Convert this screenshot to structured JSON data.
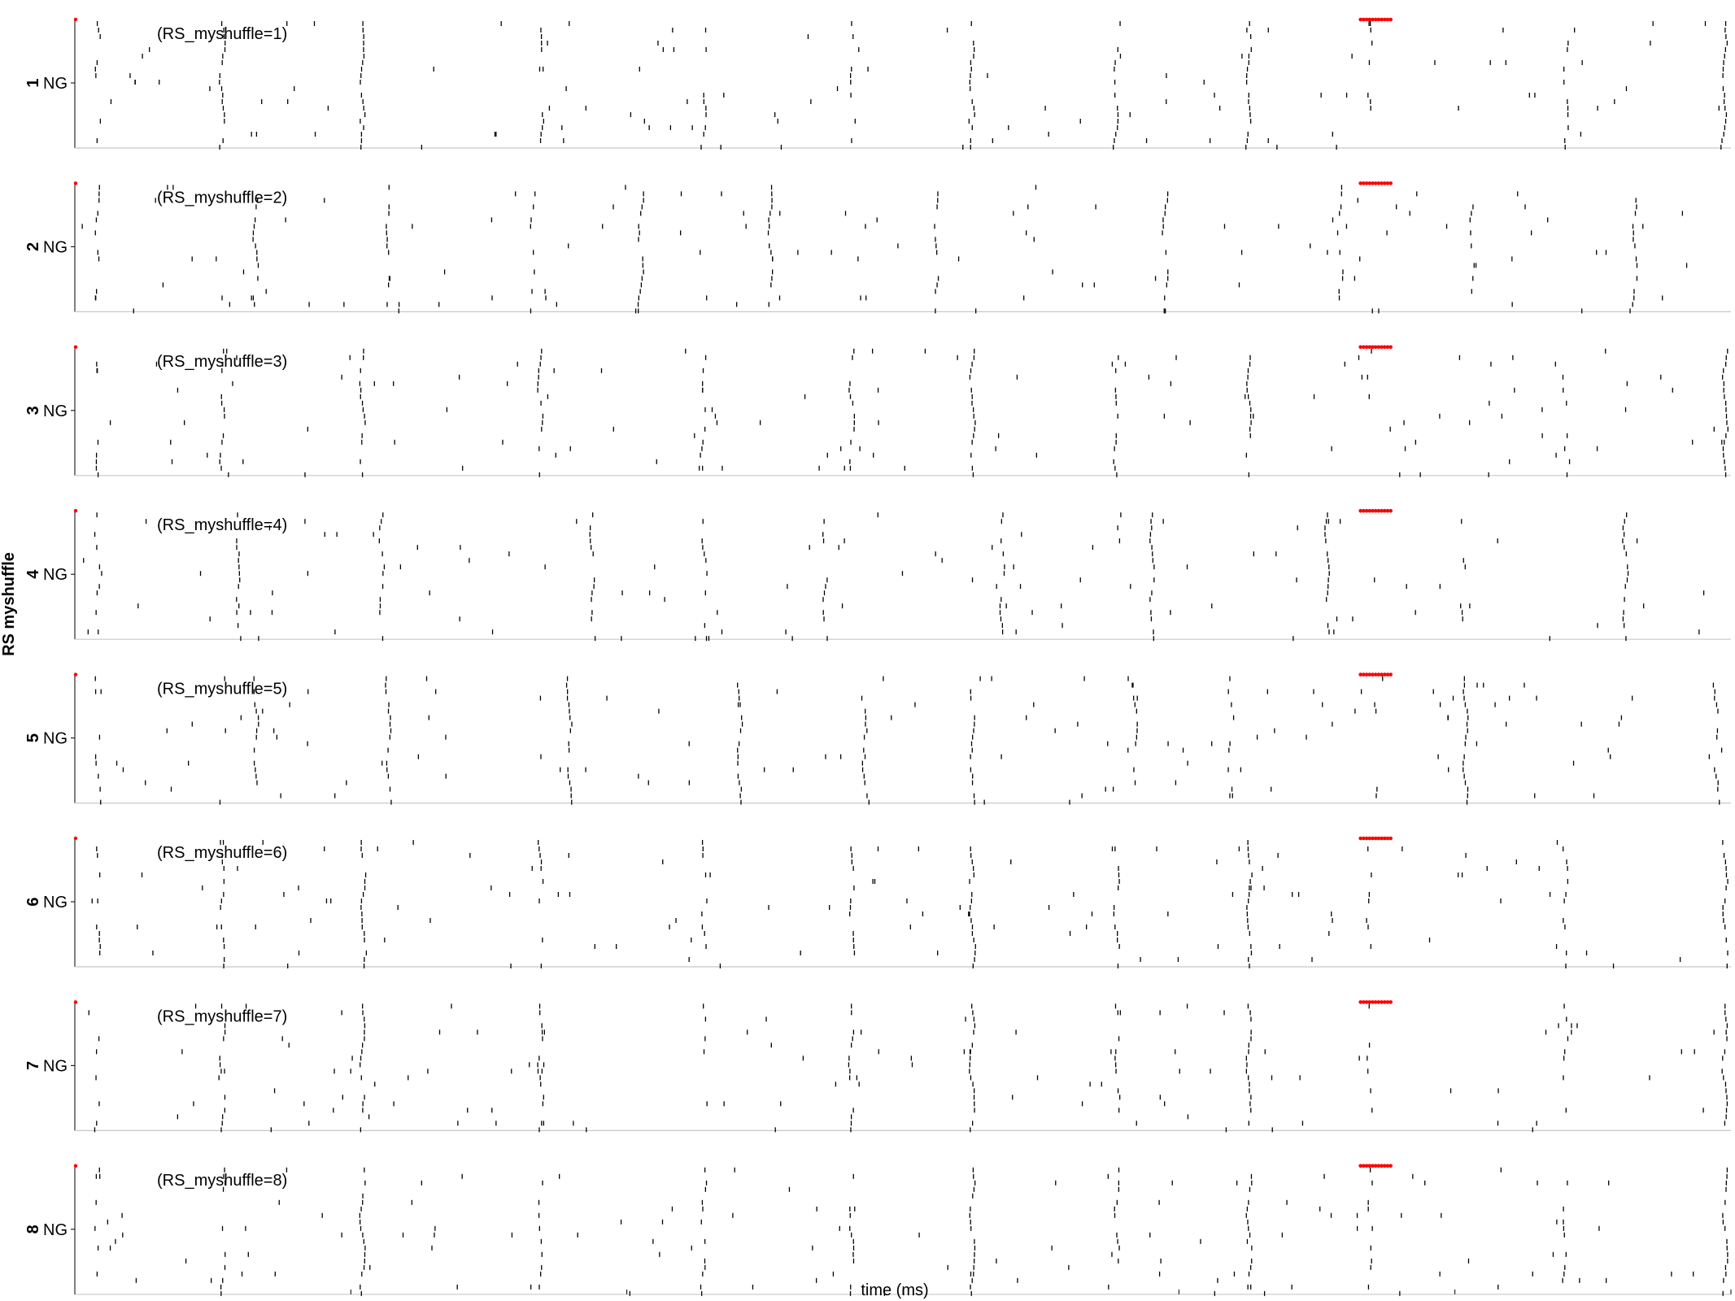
{
  "chart_data": {
    "type": "raster",
    "ylabel": "RS myshuffle",
    "xlabel": "time (ms)",
    "xlim": [
      0,
      5500
    ],
    "xticks": [
      "0",
      "916.667",
      "1833.33",
      "2750",
      "3666.67",
      "4583.33",
      "5500"
    ],
    "ytick_label": "NG",
    "panels": [
      {
        "index": "1",
        "label": "(RS_myshuffle=1)",
        "marker_x": [
          4270,
          4370
        ]
      },
      {
        "index": "2",
        "label": "(RS_myshuffle=2)",
        "marker_x": [
          4270,
          4370
        ]
      },
      {
        "index": "3",
        "label": "(RS_myshuffle=3)",
        "marker_x": [
          4270,
          4370
        ]
      },
      {
        "index": "4",
        "label": "(RS_myshuffle=4)",
        "marker_x": [
          4270,
          4370
        ]
      },
      {
        "index": "5",
        "label": "(RS_myshuffle=5)",
        "marker_x": [
          4270,
          4370
        ]
      },
      {
        "index": "6",
        "label": "(RS_myshuffle=6)",
        "marker_x": [
          4270,
          4370
        ]
      },
      {
        "index": "7",
        "label": "(RS_myshuffle=7)",
        "marker_x": [
          4270,
          4370
        ]
      },
      {
        "index": "8",
        "label": "(RS_myshuffle=8)",
        "marker_x": [
          4270,
          4370
        ]
      }
    ],
    "bursts": [
      [
        [
          75,
          0.5
        ],
        [
          490,
          0.6
        ],
        [
          955,
          0.8
        ],
        [
          1545,
          0.5
        ],
        [
          2090,
          0.6
        ],
        [
          2580,
          0.5
        ],
        [
          2980,
          0.8
        ],
        [
          3460,
          0.5
        ],
        [
          3900,
          0.8
        ],
        [
          4300,
          0.3
        ],
        [
          4950,
          0.4
        ],
        [
          5480,
          0.9
        ]
      ],
      [
        [
          75,
          0.6
        ],
        [
          600,
          0.6
        ],
        [
          1040,
          0.5
        ],
        [
          1520,
          0.5
        ],
        [
          1880,
          0.7
        ],
        [
          2310,
          0.8
        ],
        [
          2860,
          0.5
        ],
        [
          3620,
          0.6
        ],
        [
          4200,
          0.4
        ],
        [
          4640,
          0.5
        ],
        [
          5180,
          0.6
        ]
      ],
      [
        [
          75,
          0.5
        ],
        [
          490,
          0.6
        ],
        [
          955,
          0.8
        ],
        [
          1545,
          0.5
        ],
        [
          2090,
          0.6
        ],
        [
          2580,
          0.5
        ],
        [
          2980,
          0.8
        ],
        [
          3460,
          0.5
        ],
        [
          3900,
          0.8
        ],
        [
          4300,
          0.3
        ],
        [
          4950,
          0.4
        ],
        [
          5480,
          0.9
        ]
      ],
      [
        [
          75,
          0.5
        ],
        [
          540,
          0.6
        ],
        [
          1020,
          0.6
        ],
        [
          1720,
          0.6
        ],
        [
          2090,
          0.6
        ],
        [
          2490,
          0.5
        ],
        [
          3080,
          0.7
        ],
        [
          3580,
          0.8
        ],
        [
          4160,
          0.6
        ],
        [
          4610,
          0.5
        ],
        [
          5150,
          0.7
        ]
      ],
      [
        [
          75,
          0.5
        ],
        [
          600,
          0.7
        ],
        [
          1040,
          0.8
        ],
        [
          1640,
          0.8
        ],
        [
          2210,
          0.8
        ],
        [
          2620,
          0.6
        ],
        [
          2980,
          0.8
        ],
        [
          3520,
          0.6
        ],
        [
          3840,
          0.5
        ],
        [
          4320,
          0.3
        ],
        [
          4620,
          0.8
        ],
        [
          5450,
          0.6
        ]
      ],
      [
        [
          75,
          0.5
        ],
        [
          490,
          0.6
        ],
        [
          955,
          0.8
        ],
        [
          1545,
          0.5
        ],
        [
          2090,
          0.6
        ],
        [
          2580,
          0.5
        ],
        [
          2980,
          0.8
        ],
        [
          3460,
          0.5
        ],
        [
          3900,
          0.8
        ],
        [
          4300,
          0.3
        ],
        [
          4950,
          0.4
        ],
        [
          5480,
          0.9
        ]
      ],
      [
        [
          75,
          0.5
        ],
        [
          490,
          0.6
        ],
        [
          955,
          0.8
        ],
        [
          1545,
          0.5
        ],
        [
          2090,
          0.6
        ],
        [
          2580,
          0.5
        ],
        [
          2980,
          0.8
        ],
        [
          3460,
          0.5
        ],
        [
          3900,
          0.8
        ],
        [
          4300,
          0.3
        ],
        [
          4950,
          0.4
        ],
        [
          5480,
          0.9
        ]
      ],
      [
        [
          75,
          0.5
        ],
        [
          490,
          0.6
        ],
        [
          955,
          0.8
        ],
        [
          1545,
          0.5
        ],
        [
          2090,
          0.6
        ],
        [
          2580,
          0.5
        ],
        [
          2980,
          0.8
        ],
        [
          3460,
          0.5
        ],
        [
          3900,
          0.8
        ],
        [
          4300,
          0.3
        ],
        [
          4950,
          0.4
        ],
        [
          5480,
          0.9
        ]
      ]
    ],
    "colors": {
      "spike": "#000000",
      "marker": "#ff0000",
      "axis": "#000000"
    }
  }
}
